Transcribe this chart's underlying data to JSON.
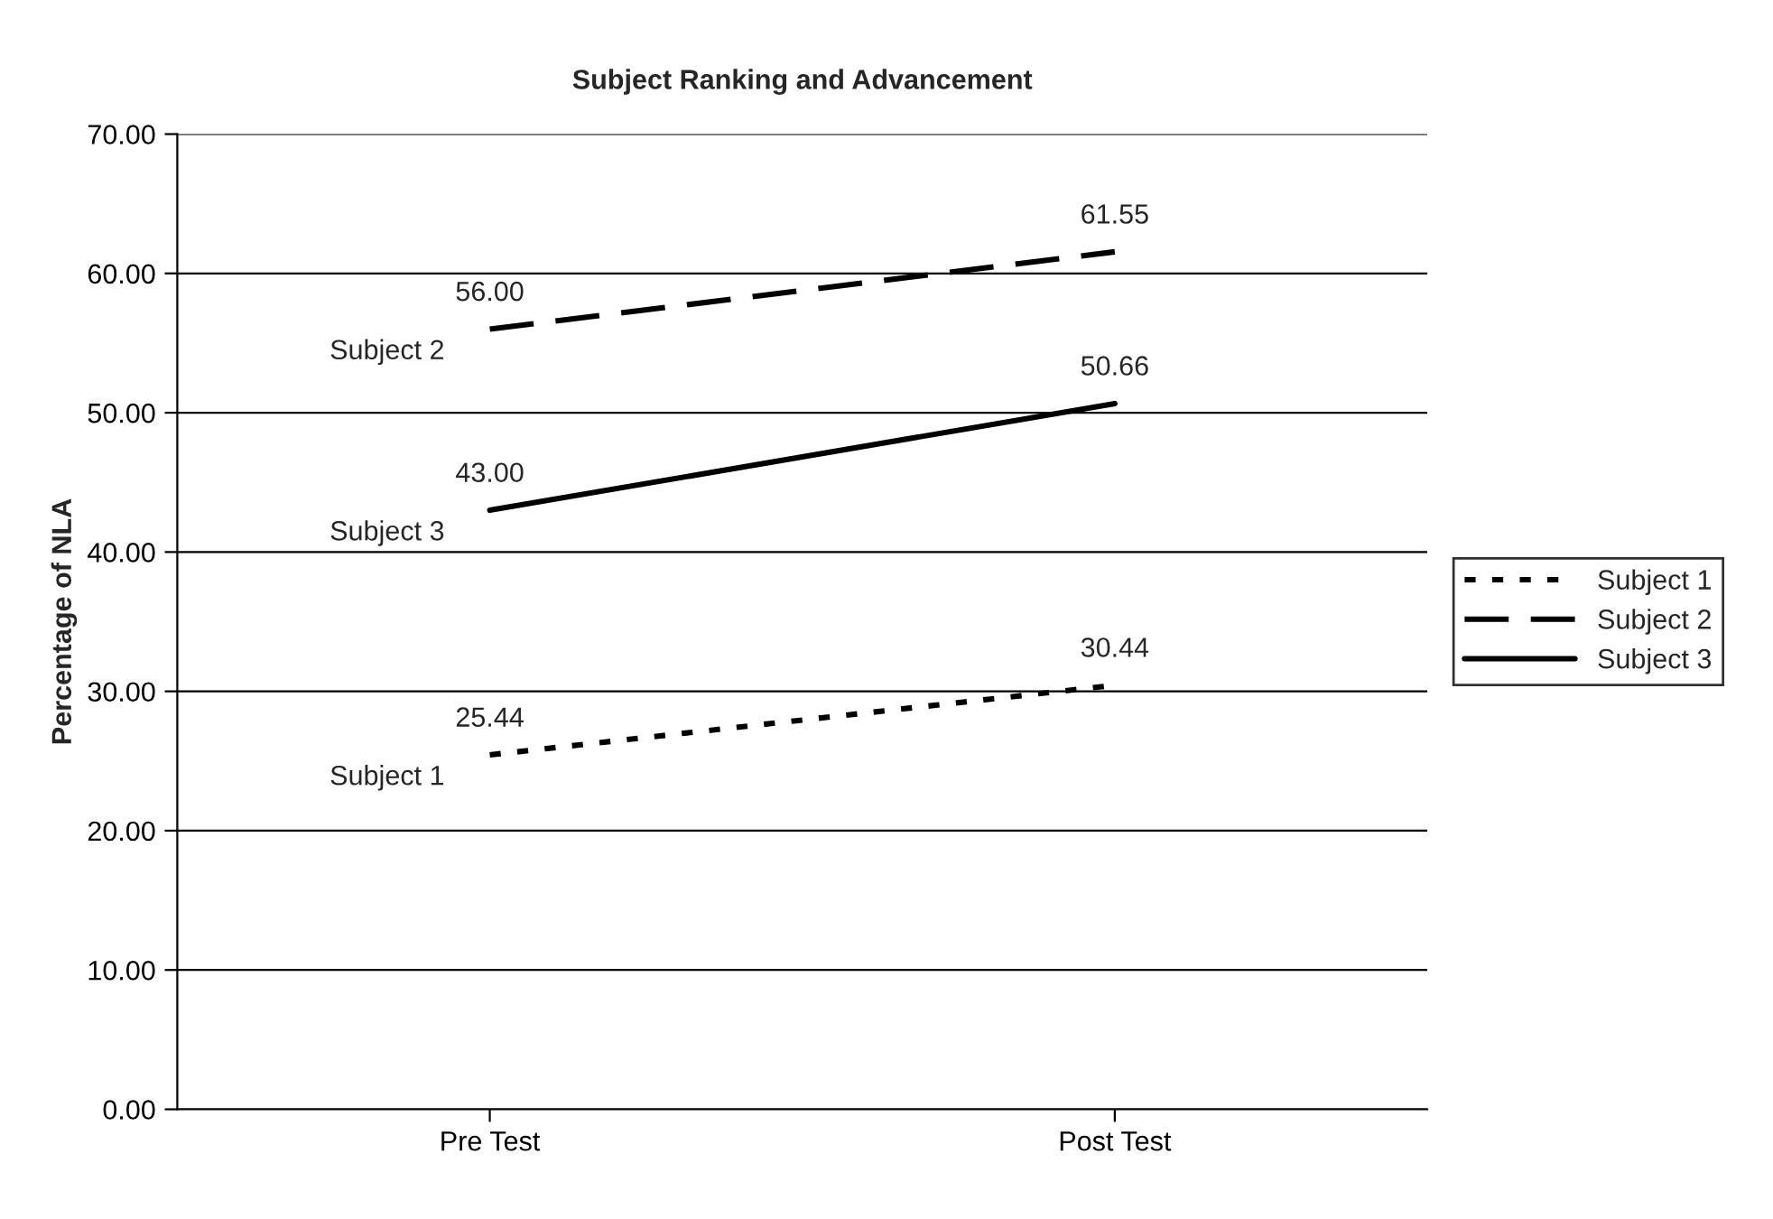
{
  "chart_data": {
    "type": "line",
    "title": "Subject Ranking and Advancement",
    "ylabel": "Percentage of NLA",
    "categories": [
      "Pre Test",
      "Post Test"
    ],
    "series": [
      {
        "name": "Subject 1",
        "color": "#000000",
        "line_style": "dotted",
        "values": [
          25.44,
          30.44
        ],
        "value_labels": [
          "25.44",
          "30.44"
        ]
      },
      {
        "name": "Subject 2",
        "color": "#000000",
        "line_style": "dashed",
        "values": [
          56.0,
          61.55
        ],
        "value_labels": [
          "56.00",
          "61.55"
        ]
      },
      {
        "name": "Subject 3",
        "color": "#000000",
        "line_style": "solid",
        "values": [
          43.0,
          50.66
        ],
        "value_labels": [
          "43.00",
          "50.66"
        ]
      }
    ],
    "ylim": [
      0,
      70
    ],
    "yticks": [
      {
        "value": 0,
        "label": "0.00"
      },
      {
        "value": 10,
        "label": "10.00"
      },
      {
        "value": 20,
        "label": "20.00"
      },
      {
        "value": 30,
        "label": "30.00"
      },
      {
        "value": 40,
        "label": "40.00"
      },
      {
        "value": 50,
        "label": "50.00"
      },
      {
        "value": 60,
        "label": "60.00"
      },
      {
        "value": 70,
        "label": "70.00"
      }
    ],
    "grid": "y",
    "legend": "right",
    "marker": "none"
  }
}
